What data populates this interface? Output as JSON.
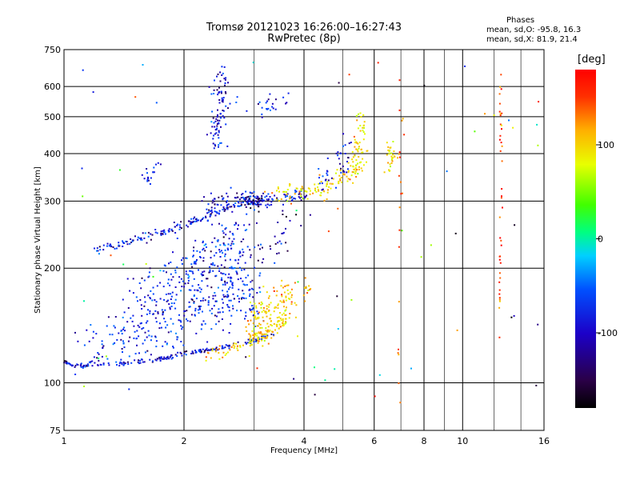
{
  "chart_data": {
    "type": "scatter",
    "title": "Tromsø 20121023 16:26:00–16:27:43",
    "subtitle": "RwPretec (8p)",
    "xlabel": "Frequency [MHz]",
    "ylabel": "Stationary phase Virtual Height [km]",
    "x_scale": "log",
    "y_scale": "log",
    "xlim": [
      1,
      16
    ],
    "ylim": [
      75,
      750
    ],
    "x_ticks": [
      1,
      2,
      4,
      6,
      8,
      10,
      16
    ],
    "x_minor_ticks": [
      3,
      5,
      7,
      9,
      12,
      14
    ],
    "y_ticks": [
      75,
      100,
      200,
      300,
      400,
      500,
      600,
      750
    ],
    "grid": true,
    "colorbar": {
      "label": "[deg]",
      "range": [
        -180,
        180
      ],
      "ticks": [
        100,
        0,
        -100
      ]
    },
    "stats": {
      "header": "Phases",
      "o_line": "mean, sd,O: -95.8, 16.3",
      "x_line": "mean, sd,X: 81.9, 21.4"
    },
    "trace_shapes": [
      {
        "x": [
          1.0,
          1.07,
          1.15,
          1.3,
          1.5,
          1.7,
          1.85,
          2.0,
          2.2,
          2.4,
          2.7,
          3.0,
          3.3
        ],
        "y": [
          113,
          111,
          111,
          112,
          113,
          115,
          117,
          119,
          121,
          123,
          126,
          129,
          133
        ],
        "phase": -115,
        "sx": 0.012,
        "sy": 0.006,
        "n": 180
      },
      {
        "x": [
          1.1,
          1.25,
          1.4,
          1.6,
          1.8,
          2.0,
          2.2,
          2.45,
          2.7,
          3.0
        ],
        "y": [
          118,
          125,
          130,
          138,
          145,
          150,
          155,
          160,
          165,
          170
        ],
        "phase": -105,
        "sx": 0.05,
        "sy": 0.1,
        "n": 260
      },
      {
        "x": [
          1.5,
          1.75,
          2.0,
          2.3,
          2.6,
          2.9
        ],
        "y": [
          150,
          165,
          180,
          190,
          200,
          195
        ],
        "phase": -110,
        "sx": 0.05,
        "sy": 0.12,
        "n": 220
      },
      {
        "x": [
          2.0,
          2.2,
          2.4,
          2.6,
          2.8
        ],
        "y": [
          200,
          210,
          225,
          240,
          250
        ],
        "phase": -105,
        "sx": 0.04,
        "sy": 0.07,
        "n": 90
      },
      {
        "x": [
          2.3,
          2.5,
          2.7,
          3.0,
          3.2,
          3.4,
          3.6
        ],
        "y": [
          120,
          121,
          124,
          130,
          135,
          140,
          148
        ],
        "phase": 120,
        "sx": 0.012,
        "sy": 0.02,
        "n": 90
      },
      {
        "x": [
          2.9,
          3.1,
          3.3,
          3.5,
          3.7
        ],
        "y": [
          135,
          145,
          155,
          165,
          160
        ],
        "phase": 115,
        "sx": 0.03,
        "sy": 0.06,
        "n": 150
      },
      {
        "x": [
          4.0,
          4.1
        ],
        "y": [
          170,
          180
        ],
        "phase": 125,
        "sx": 0.01,
        "sy": 0.02,
        "n": 12
      },
      {
        "x": [
          1.2,
          1.35,
          1.5,
          1.7,
          1.9,
          2.1,
          2.3,
          2.6,
          2.9,
          3.2,
          3.6,
          4.0
        ],
        "y": [
          225,
          230,
          237,
          245,
          255,
          265,
          275,
          287,
          297,
          302,
          306,
          312
        ],
        "phase": -110,
        "sx": 0.015,
        "sy": 0.014,
        "n": 210
      },
      {
        "x": [
          2.3,
          2.6,
          2.9,
          3.2
        ],
        "y": [
          290,
          300,
          305,
          300
        ],
        "phase": -115,
        "sx": 0.04,
        "sy": 0.03,
        "n": 90
      },
      {
        "x": [
          2.8,
          3.0,
          3.2
        ],
        "y": [
          295,
          305,
          300
        ],
        "phase": -140,
        "sx": 0.02,
        "sy": 0.02,
        "n": 25
      },
      {
        "x": [
          3.4,
          3.8,
          4.2,
          4.6,
          5.0,
          5.4,
          5.7
        ],
        "y": [
          310,
          315,
          320,
          330,
          345,
          365,
          400
        ],
        "phase": 115,
        "sx": 0.02,
        "sy": 0.03,
        "n": 120
      },
      {
        "x": [
          5.3,
          5.5,
          5.7
        ],
        "y": [
          380,
          430,
          490
        ],
        "phase": 110,
        "sx": 0.012,
        "sy": 0.06,
        "n": 45
      },
      {
        "x": [
          4.4,
          4.7,
          5.0,
          5.3
        ],
        "y": [
          335,
          360,
          380,
          400
        ],
        "phase": -110,
        "sx": 0.03,
        "sy": 0.06,
        "n": 40
      },
      {
        "x": [
          6.5,
          6.7
        ],
        "y": [
          380,
          400
        ],
        "phase": 110,
        "sx": 0.02,
        "sy": 0.05,
        "n": 30
      },
      {
        "x": [
          2.4,
          2.5
        ],
        "y": [
          430,
          640
        ],
        "phase": -115,
        "sx": 0.025,
        "sy": 0.04,
        "n": 90
      },
      {
        "x": [
          2.8,
          3.2,
          3.7
        ],
        "y": [
          530,
          530,
          560
        ],
        "phase": -110,
        "sx": 0.04,
        "sy": 0.03,
        "n": 25
      },
      {
        "x": [
          1.6,
          1.7
        ],
        "y": [
          330,
          370
        ],
        "phase": -110,
        "sx": 0.02,
        "sy": 0.03,
        "n": 18
      },
      {
        "x": [
          3.0,
          3.4,
          3.8
        ],
        "y": [
          200,
          240,
          270
        ],
        "phase": -130,
        "sx": 0.04,
        "sy": 0.06,
        "n": 30
      },
      {
        "x": [
          1.1,
          16.0
        ],
        "y": [
          90,
          700
        ],
        "phase": 0,
        "sx": 0.0,
        "sy": 0.0,
        "n": 70,
        "sparse": true
      },
      {
        "x": [
          12.4,
          12.5
        ],
        "y": [
          130,
          660
        ],
        "phase": 150,
        "sx": 0.005,
        "sy": 0.05,
        "n": 40
      },
      {
        "x": [
          6.9,
          7.0
        ],
        "y": [
          90,
          580
        ],
        "phase": 155,
        "sx": 0.008,
        "sy": 0.05,
        "n": 20
      }
    ]
  }
}
